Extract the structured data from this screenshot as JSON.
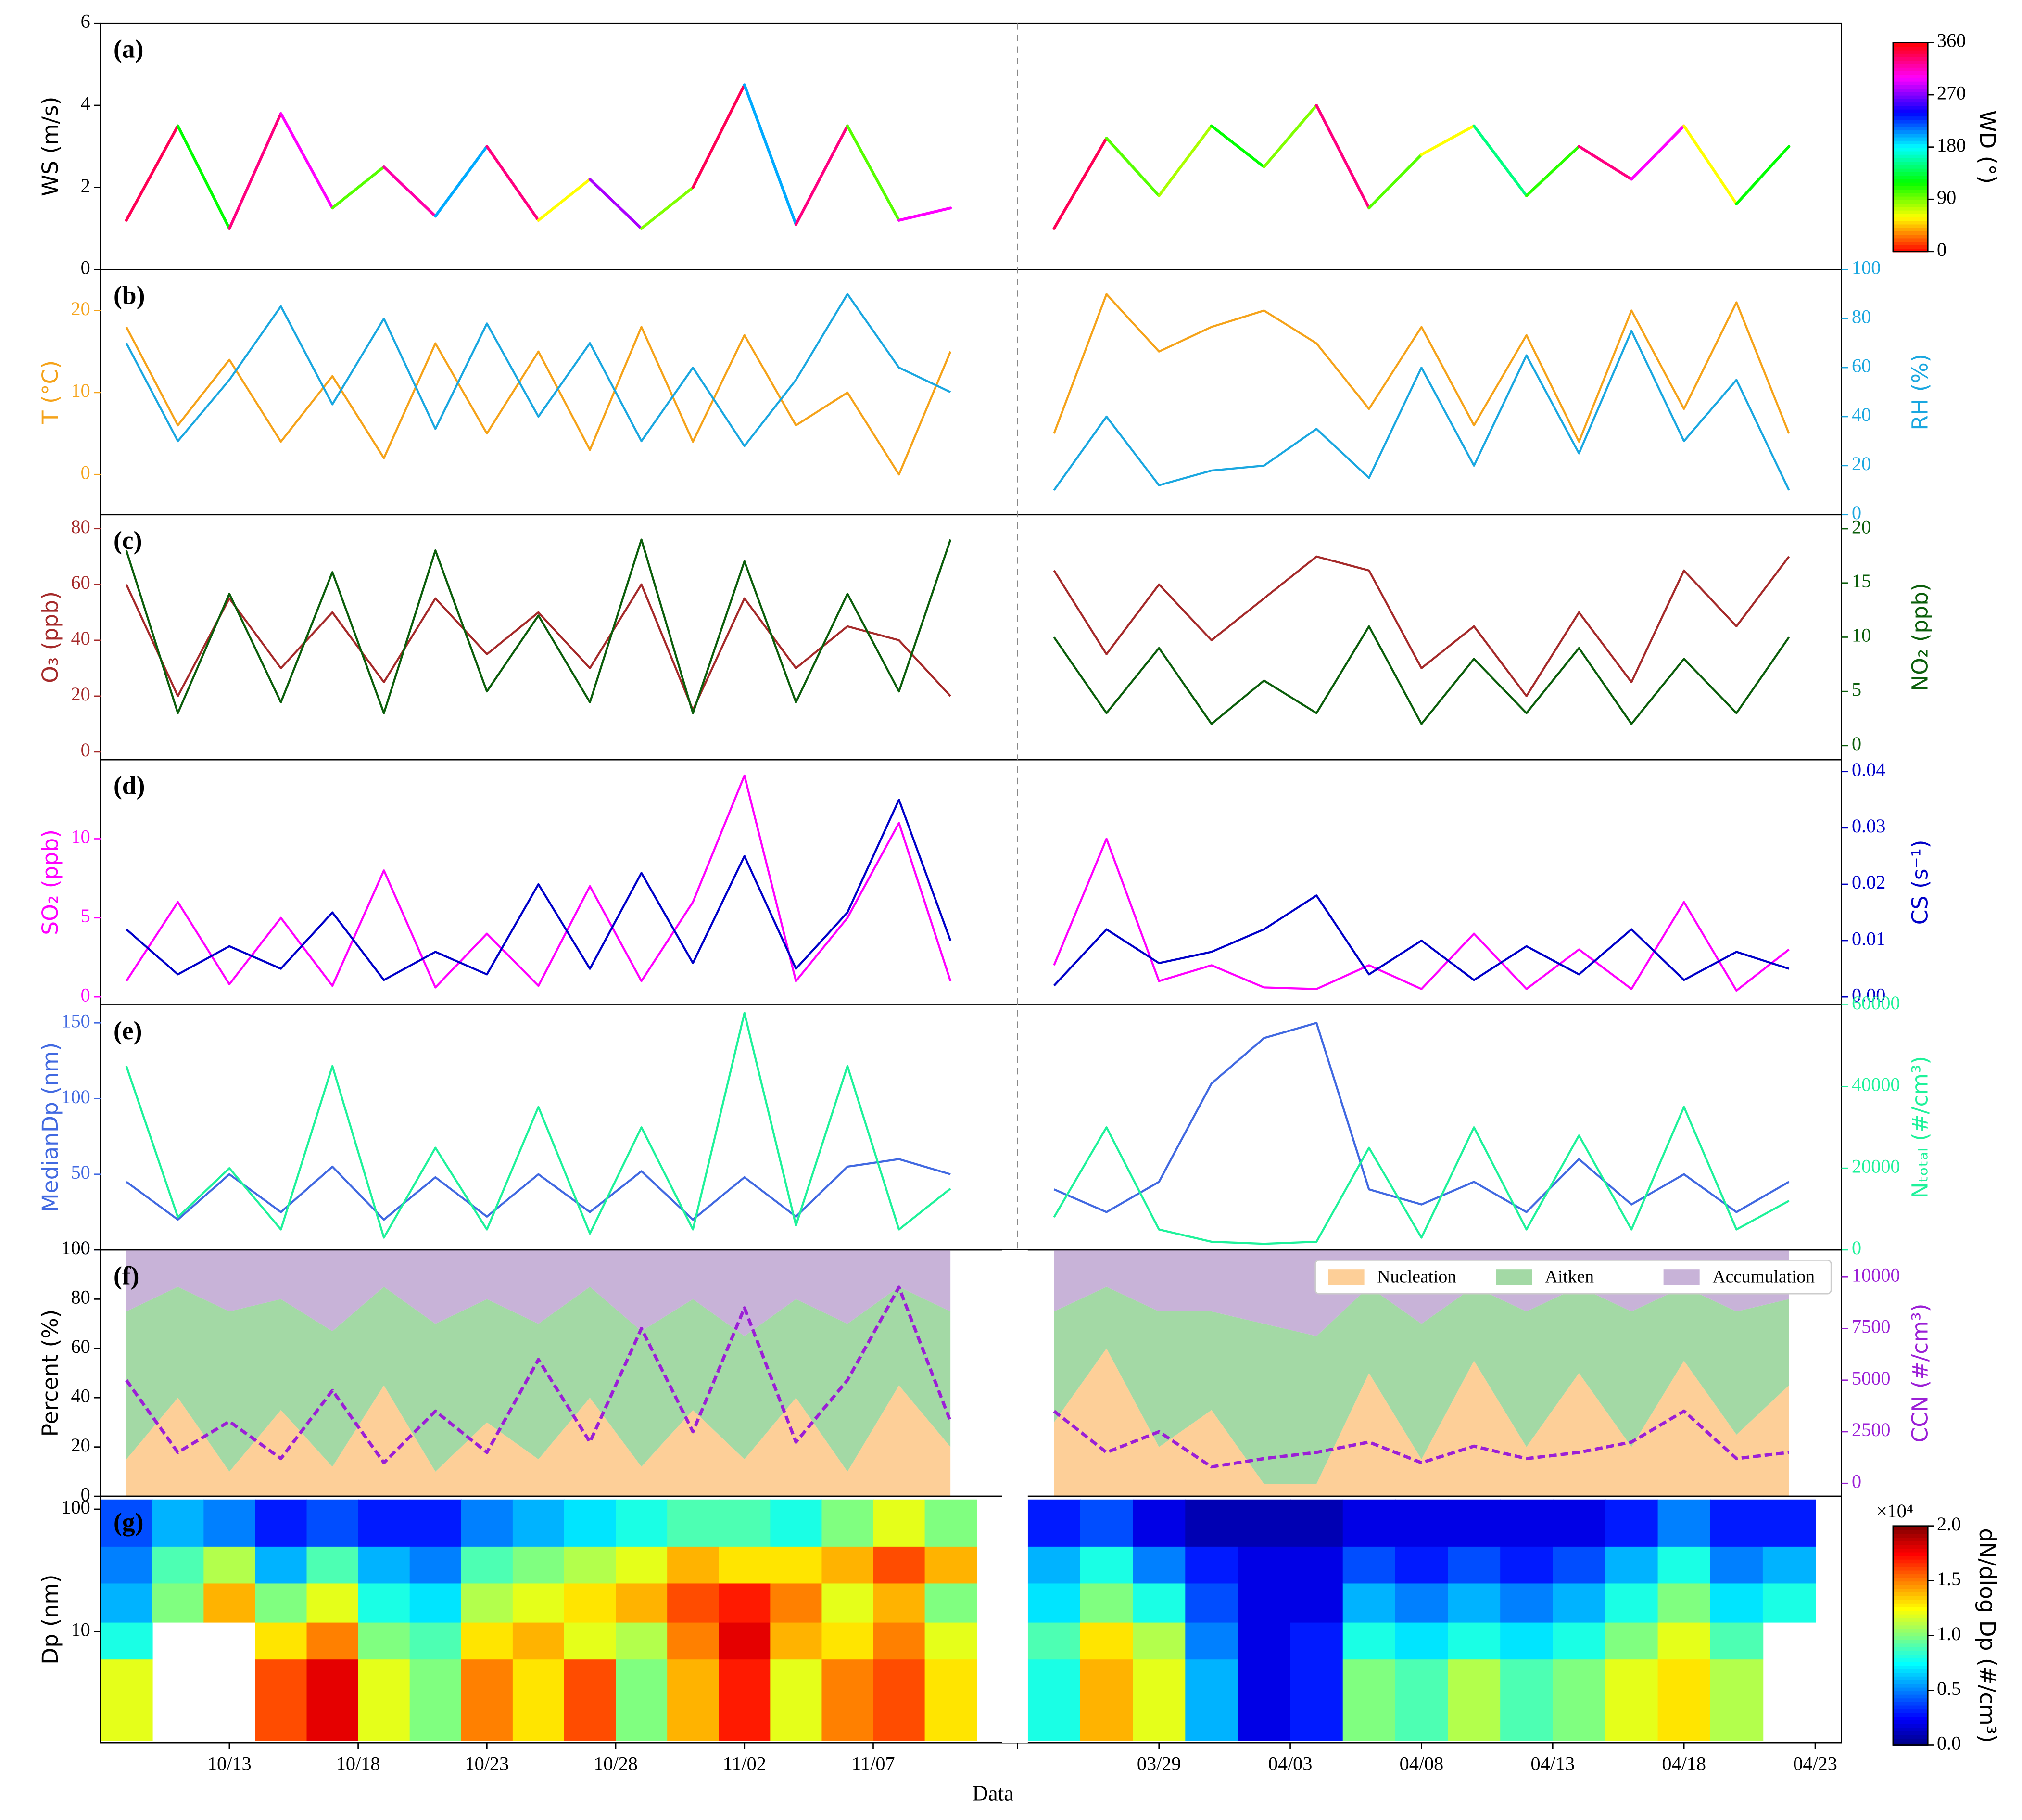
{
  "chart_data": {
    "type": "panels",
    "xlabel": "Data",
    "xlim": [
      "10/08",
      "04/24"
    ],
    "x_break": [
      "11/12",
      "03/24"
    ],
    "xticks": [
      "10/13",
      "10/18",
      "10/23",
      "10/28",
      "11/02",
      "11/07",
      "03/29",
      "04/03",
      "04/08",
      "04/13",
      "04/18",
      "04/23"
    ],
    "x": [
      "10/09",
      "10/11",
      "10/13",
      "10/15",
      "10/17",
      "10/19",
      "10/21",
      "10/23",
      "10/25",
      "10/27",
      "10/29",
      "10/31",
      "11/02",
      "11/04",
      "11/06",
      "11/08",
      "11/10",
      "03/25",
      "03/27",
      "03/29",
      "03/31",
      "04/02",
      "04/04",
      "04/06",
      "04/08",
      "04/10",
      "04/12",
      "04/14",
      "04/16",
      "04/18",
      "04/20",
      "04/22"
    ],
    "panels": [
      {
        "type": "line",
        "label": "(a)",
        "ylabel": "WS (m/s)",
        "ylim": [
          0,
          6
        ],
        "yticks": [
          0,
          2,
          4,
          6
        ],
        "series": [
          {
            "values": [
              1.2,
              3.5,
              1.0,
              3.8,
              1.5,
              2.5,
              1.3,
              3.0,
              1.2,
              2.2,
              1.0,
              2.0,
              4.5,
              1.1,
              3.5,
              1.2,
              1.5,
              1.0,
              3.2,
              1.8,
              3.5,
              2.5,
              4.0,
              1.5,
              2.8,
              3.5,
              1.8,
              3.0,
              2.2,
              3.5,
              1.6,
              3.0
            ],
            "color_values": [
              300,
              340,
              120,
              330,
              300,
              100,
              320,
              200,
              330,
              60,
              280,
              90,
              340,
              200,
              330,
              100,
              300,
              90,
              340,
              100,
              80,
              120,
              90,
              330,
              100,
              60,
              150,
              110,
              330,
              300,
              60,
              120
            ]
          }
        ],
        "colorbar": {
          "label": "WD (°)",
          "colormap": "hsv",
          "lim": [
            0,
            360
          ],
          "ticks": [
            0,
            90,
            180,
            270,
            360
          ]
        }
      },
      {
        "type": "line",
        "label": "(b)",
        "ylabel": "T (°C)",
        "ylim": [
          -4.9,
          25
        ],
        "yticks": [
          0,
          10,
          20
        ],
        "y2label": "RH (%)",
        "y2lim": [
          0,
          100
        ],
        "y2ticks": [
          0,
          20,
          40,
          60,
          80,
          100
        ],
        "series": [
          {
            "color": "#f5a31a",
            "values": [
              18,
              6,
              14,
              4,
              12,
              2,
              16,
              5,
              15,
              3,
              18,
              4,
              17,
              6,
              10,
              0,
              15,
              5,
              22,
              15,
              18,
              20,
              16,
              8,
              18,
              6,
              17,
              4,
              20,
              8,
              21,
              5
            ]
          },
          {
            "color": "#1aa7e0",
            "axis": "y2",
            "values": [
              70,
              30,
              55,
              85,
              45,
              80,
              35,
              78,
              40,
              70,
              30,
              60,
              28,
              55,
              90,
              60,
              50,
              10,
              40,
              12,
              18,
              20,
              35,
              15,
              60,
              20,
              65,
              25,
              75,
              30,
              55,
              10
            ]
          }
        ]
      },
      {
        "type": "line",
        "label": "(c)",
        "ylabel": "O₃ (ppb)",
        "ylim": [
          -2.8,
          85
        ],
        "yticks": [
          0,
          20,
          40,
          60,
          80
        ],
        "y2label": "NO₂ (ppb)",
        "y2lim": [
          -1.3,
          21.3
        ],
        "y2ticks": [
          0,
          5,
          10,
          15,
          20
        ],
        "series": [
          {
            "color": "#a52a2a",
            "values": [
              60,
              20,
              55,
              30,
              50,
              25,
              55,
              35,
              50,
              30,
              60,
              15,
              55,
              30,
              45,
              40,
              20,
              65,
              35,
              60,
              40,
              55,
              70,
              65,
              30,
              45,
              20,
              50,
              25,
              65,
              45,
              70
            ]
          },
          {
            "color": "#0b5e0b",
            "axis": "y2",
            "values": [
              18,
              3,
              14,
              4,
              16,
              3,
              18,
              5,
              12,
              4,
              19,
              3,
              17,
              4,
              14,
              5,
              19,
              10,
              3,
              9,
              2,
              6,
              3,
              11,
              2,
              8,
              3,
              9,
              2,
              8,
              3,
              10
            ]
          }
        ]
      },
      {
        "type": "line",
        "label": "(d)",
        "ylabel": "SO₂ (ppb)",
        "ylim": [
          -0.5,
          15
        ],
        "yticks": [
          0,
          5,
          10
        ],
        "y2label": "CS (s⁻¹)",
        "y2lim": [
          -0.0014,
          0.0421
        ],
        "y2ticks": [
          {
            "value": 0,
            "label": "0.00"
          },
          {
            "value": 0.01,
            "label": "0.01"
          },
          {
            "value": 0.02,
            "label": "0.02"
          },
          {
            "value": 0.03,
            "label": "0.03"
          },
          {
            "value": 0.04,
            "label": "0.04"
          }
        ],
        "series": [
          {
            "color": "#ff00ff",
            "values": [
              1,
              6,
              0.8,
              5,
              0.7,
              8,
              0.6,
              4,
              0.7,
              7,
              1,
              6,
              14,
              1,
              5,
              11,
              1,
              2,
              10,
              1,
              2,
              0.6,
              0.5,
              2,
              0.5,
              4,
              0.5,
              3,
              0.5,
              6,
              0.4,
              3
            ]
          },
          {
            "color": "#0000c8",
            "axis": "y2",
            "values": [
              0.012,
              0.004,
              0.009,
              0.005,
              0.015,
              0.003,
              0.008,
              0.004,
              0.02,
              0.005,
              0.022,
              0.006,
              0.025,
              0.005,
              0.015,
              0.035,
              0.01,
              0.002,
              0.012,
              0.006,
              0.008,
              0.012,
              0.018,
              0.004,
              0.01,
              0.003,
              0.009,
              0.004,
              0.012,
              0.003,
              0.008,
              0.005
            ]
          }
        ]
      },
      {
        "type": "line",
        "label": "(e)",
        "ylabel": "MedianDp (nm)",
        "ylim": [
          0,
          162
        ],
        "yticks": [
          0,
          50,
          100,
          150
        ],
        "y2label": "Nₜₒₜₐₗ (#/cm³)",
        "y2lim": [
          0,
          60000
        ],
        "y2ticks": [
          0,
          20000,
          40000,
          60000
        ],
        "series": [
          {
            "color": "#4169e1",
            "values": [
              45,
              20,
              50,
              25,
              55,
              20,
              48,
              22,
              50,
              25,
              52,
              20,
              48,
              22,
              55,
              60,
              50,
              40,
              25,
              45,
              110,
              140,
              150,
              40,
              30,
              45,
              25,
              60,
              30,
              50,
              25,
              45
            ]
          },
          {
            "color": "#1ef29a",
            "axis": "y2",
            "values": [
              45000,
              8000,
              20000,
              5000,
              45000,
              3000,
              25000,
              5000,
              35000,
              4000,
              30000,
              5000,
              58000,
              6000,
              45000,
              5000,
              15000,
              8000,
              30000,
              5000,
              2000,
              1500,
              2000,
              25000,
              3000,
              30000,
              5000,
              28000,
              5000,
              35000,
              5000,
              12000
            ]
          }
        ]
      },
      {
        "type": "stacked-area",
        "label": "(f)",
        "ylabel": "Percent (%)",
        "ylim": [
          0,
          100
        ],
        "yticks": [
          0,
          20,
          40,
          60,
          80,
          100
        ],
        "y2label": "CCN (#/cm³)",
        "y2lim": [
          -625,
          11312
        ],
        "y2ticks": [
          0,
          2500,
          5000,
          7500,
          10000
        ],
        "legend": "upper right",
        "series": [
          {
            "name": "Nucleation",
            "color": "#fdcf98",
            "values": [
              15,
              40,
              10,
              35,
              12,
              45,
              10,
              30,
              15,
              40,
              12,
              35,
              15,
              40,
              10,
              45,
              20,
              30,
              60,
              20,
              35,
              5,
              5,
              50,
              15,
              55,
              20,
              50,
              20,
              55,
              25,
              45
            ]
          },
          {
            "name": "Aitken",
            "color": "#a3d9a5",
            "values": [
              60,
              45,
              65,
              45,
              55,
              40,
              60,
              50,
              55,
              45,
              55,
              45,
              50,
              40,
              60,
              40,
              55,
              45,
              25,
              55,
              40,
              65,
              60,
              35,
              55,
              30,
              55,
              35,
              55,
              30,
              50,
              35
            ]
          },
          {
            "name": "Accumulation",
            "color": "#c8b3d8",
            "values": [
              25,
              15,
              25,
              20,
              33,
              15,
              30,
              20,
              30,
              15,
              33,
              20,
              35,
              20,
              30,
              15,
              25,
              25,
              15,
              25,
              25,
              30,
              35,
              15,
              30,
              15,
              25,
              15,
              25,
              15,
              25,
              20
            ]
          },
          {
            "color": "#9b1fd6",
            "axis": "y2",
            "linestyle": "dashed",
            "values": [
              5000,
              1500,
              3000,
              1200,
              4500,
              1000,
              3500,
              1500,
              6000,
              2000,
              7500,
              2500,
              8500,
              2000,
              5000,
              9500,
              3000,
              3500,
              1500,
              2500,
              800,
              1200,
              1500,
              2000,
              1000,
              1800,
              1200,
              1500,
              2000,
              3500,
              1200,
              1500
            ]
          }
        ]
      },
      {
        "type": "heatmap",
        "label": "(g)",
        "ylabel": "Dp (nm)",
        "ylog": true,
        "ylim": [
          1.24,
          127.5
        ],
        "yticks": [
          10,
          100
        ],
        "dp_edges": [
          1.3,
          6,
          12,
          25,
          50,
          120
        ],
        "z": [
          [
            1.2,
            0.8,
            0.6,
            0.5,
            0.4
          ],
          [
            null,
            null,
            1.0,
            0.9,
            0.6
          ],
          [
            null,
            null,
            1.4,
            1.1,
            0.5
          ],
          [
            1.6,
            1.3,
            1.0,
            0.6,
            0.3
          ],
          [
            1.8,
            1.5,
            1.2,
            0.9,
            0.4
          ],
          [
            1.2,
            1.0,
            0.8,
            0.6,
            0.3
          ],
          [
            1.0,
            0.9,
            0.7,
            0.5,
            0.3
          ],
          [
            1.5,
            1.3,
            1.1,
            0.9,
            0.5
          ],
          [
            1.3,
            1.4,
            1.2,
            1.0,
            0.6
          ],
          [
            1.6,
            1.2,
            1.3,
            1.1,
            0.7
          ],
          [
            1.0,
            1.1,
            1.4,
            1.2,
            0.8
          ],
          [
            1.4,
            1.5,
            1.6,
            1.4,
            0.9
          ],
          [
            1.7,
            1.8,
            1.7,
            1.3,
            0.9
          ],
          [
            1.2,
            1.4,
            1.5,
            1.3,
            0.8
          ],
          [
            1.5,
            1.3,
            1.2,
            1.4,
            1.0
          ],
          [
            1.6,
            1.5,
            1.4,
            1.6,
            1.2
          ],
          [
            1.3,
            1.2,
            1.0,
            1.4,
            1.0
          ],
          [
            0.8,
            0.9,
            0.7,
            0.6,
            0.3
          ],
          [
            1.4,
            1.3,
            1.0,
            0.8,
            0.4
          ],
          [
            1.2,
            1.1,
            0.8,
            0.5,
            0.2
          ],
          [
            0.6,
            0.5,
            0.4,
            0.3,
            0.1
          ],
          [
            0.2,
            0.2,
            0.2,
            0.2,
            0.1
          ],
          [
            0.3,
            0.3,
            0.2,
            0.2,
            0.1
          ],
          [
            1.0,
            0.8,
            0.6,
            0.4,
            0.2
          ],
          [
            0.9,
            0.7,
            0.5,
            0.3,
            0.2
          ],
          [
            1.1,
            0.8,
            0.6,
            0.4,
            0.2
          ],
          [
            0.9,
            0.7,
            0.5,
            0.3,
            0.2
          ],
          [
            1.0,
            0.8,
            0.6,
            0.4,
            0.2
          ],
          [
            1.2,
            1.0,
            0.8,
            0.6,
            0.3
          ],
          [
            1.3,
            1.2,
            1.0,
            0.8,
            0.5
          ],
          [
            1.1,
            0.9,
            0.7,
            0.5,
            0.3
          ],
          [
            null,
            null,
            0.8,
            0.6,
            0.3
          ]
        ],
        "colorbar": {
          "label": "dN/dlog Dp (#/cm³)",
          "multiplier": "×10⁴",
          "colormap": "jet",
          "lim": [
            0,
            2
          ],
          "ticks": [
            {
              "value": 0,
              "label": "0.0"
            },
            {
              "value": 0.5,
              "label": "0.5"
            },
            {
              "value": 1,
              "label": "1.0"
            },
            {
              "value": 1.5,
              "label": "1.5"
            },
            {
              "value": 2,
              "label": "2.0"
            }
          ]
        }
      }
    ]
  }
}
